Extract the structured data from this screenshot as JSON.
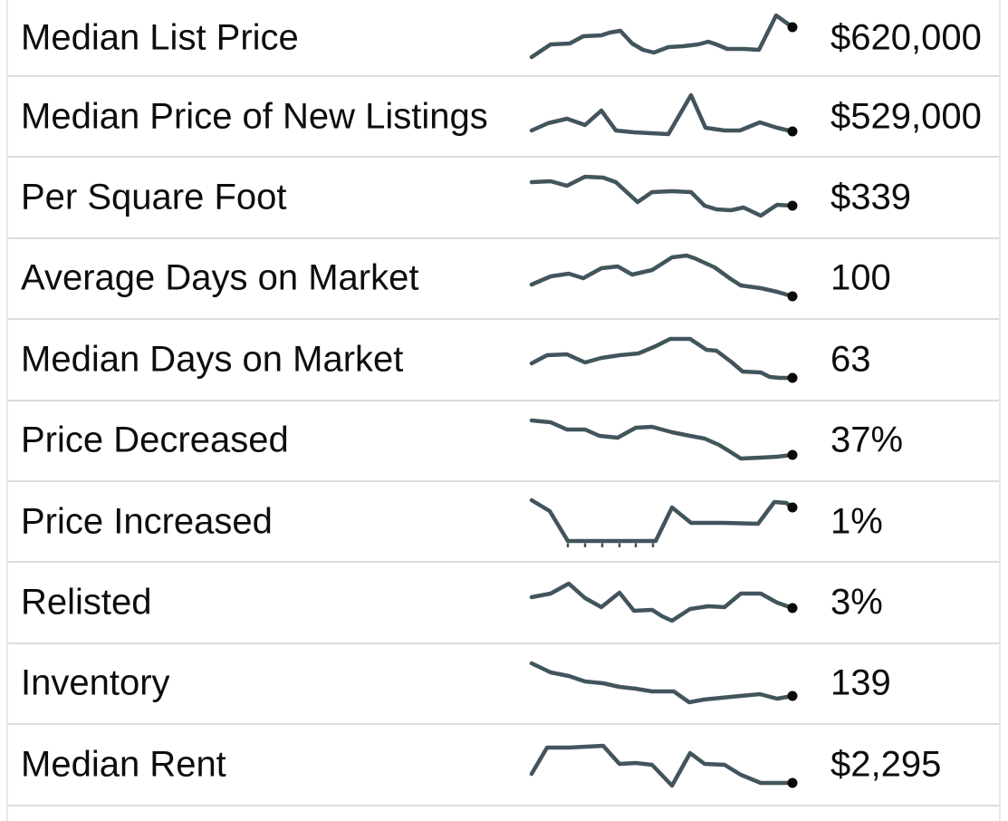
{
  "colors": {
    "background": "#ffffff",
    "text": "#0d0d0d",
    "sparkline": "#42555d",
    "endpoint_dot": "#0a0a0a",
    "row_divider": "#dcdcdc",
    "side_border": "#e9e9e9"
  },
  "chart_data": {
    "type": "table",
    "title": "Real estate market trends: metric rows, trend sparklines and latest values",
    "legend_position": "none",
    "grid": false,
    "rows": [
      {
        "label": "Median List Price",
        "value": "$620,000",
        "sparkline": [
          [
            0,
            53
          ],
          [
            21,
            39
          ],
          [
            42,
            38
          ],
          [
            57,
            30
          ],
          [
            77,
            29
          ],
          [
            86,
            26
          ],
          [
            98,
            24
          ],
          [
            111,
            38
          ],
          [
            123,
            45
          ],
          [
            135,
            48
          ],
          [
            151,
            42
          ],
          [
            167,
            41
          ],
          [
            184,
            39
          ],
          [
            195,
            36
          ],
          [
            204,
            39
          ],
          [
            216,
            44
          ],
          [
            234,
            44
          ],
          [
            251,
            45
          ],
          [
            270,
            7
          ],
          [
            288,
            20
          ]
        ]
      },
      {
        "label": "Median Price of New Listings",
        "value": "$529,000",
        "sparkline": [
          [
            0,
            47
          ],
          [
            18,
            39
          ],
          [
            39,
            34
          ],
          [
            59,
            41
          ],
          [
            77,
            25
          ],
          [
            93,
            47
          ],
          [
            113,
            49
          ],
          [
            132,
            50
          ],
          [
            151,
            51
          ],
          [
            176,
            8
          ],
          [
            192,
            44
          ],
          [
            213,
            47
          ],
          [
            230,
            47
          ],
          [
            252,
            38
          ],
          [
            271,
            44
          ],
          [
            288,
            48
          ]
        ]
      },
      {
        "label": "Per Square Foot",
        "value": "$339",
        "sparkline": [
          [
            0,
            15
          ],
          [
            21,
            14
          ],
          [
            39,
            19
          ],
          [
            59,
            9
          ],
          [
            79,
            10
          ],
          [
            93,
            15
          ],
          [
            117,
            37
          ],
          [
            133,
            26
          ],
          [
            155,
            25
          ],
          [
            176,
            26
          ],
          [
            191,
            41
          ],
          [
            204,
            45
          ],
          [
            220,
            46
          ],
          [
            234,
            43
          ],
          [
            253,
            52
          ],
          [
            271,
            40
          ],
          [
            288,
            41
          ]
        ]
      },
      {
        "label": "Average Days on Market",
        "value": "100",
        "sparkline": [
          [
            0,
            39
          ],
          [
            21,
            30
          ],
          [
            41,
            27
          ],
          [
            57,
            32
          ],
          [
            77,
            21
          ],
          [
            95,
            19
          ],
          [
            111,
            28
          ],
          [
            133,
            23
          ],
          [
            155,
            9
          ],
          [
            171,
            7
          ],
          [
            180,
            10
          ],
          [
            202,
            20
          ],
          [
            220,
            33
          ],
          [
            231,
            40
          ],
          [
            253,
            43
          ],
          [
            271,
            47
          ],
          [
            288,
            52
          ]
        ]
      },
      {
        "label": "Median Days on Market",
        "value": "63",
        "sparkline": [
          [
            0,
            36
          ],
          [
            17,
            27
          ],
          [
            39,
            26
          ],
          [
            59,
            35
          ],
          [
            77,
            30
          ],
          [
            97,
            27
          ],
          [
            118,
            25
          ],
          [
            137,
            17
          ],
          [
            153,
            9
          ],
          [
            175,
            9
          ],
          [
            193,
            21
          ],
          [
            204,
            22
          ],
          [
            220,
            34
          ],
          [
            233,
            45
          ],
          [
            253,
            46
          ],
          [
            263,
            51
          ],
          [
            274,
            52
          ],
          [
            288,
            52
          ]
        ]
      },
      {
        "label": "Price Decreased",
        "value": "37%",
        "sparkline": [
          [
            0,
            10
          ],
          [
            21,
            12
          ],
          [
            39,
            20
          ],
          [
            59,
            20
          ],
          [
            75,
            27
          ],
          [
            95,
            29
          ],
          [
            115,
            18
          ],
          [
            133,
            17
          ],
          [
            155,
            23
          ],
          [
            175,
            27
          ],
          [
            191,
            30
          ],
          [
            207,
            37
          ],
          [
            220,
            45
          ],
          [
            231,
            52
          ],
          [
            253,
            51
          ],
          [
            271,
            50
          ],
          [
            288,
            48
          ]
        ]
      },
      {
        "label": "Price Increased",
        "value": "1%",
        "sparkline": [
          [
            0,
            8
          ],
          [
            20,
            20
          ],
          [
            40,
            53
          ],
          [
            137,
            53
          ],
          [
            155,
            16
          ],
          [
            176,
            33
          ],
          [
            212,
            33
          ],
          [
            250,
            34
          ],
          [
            268,
            10
          ],
          [
            281,
            11
          ],
          [
            288,
            16
          ]
        ],
        "zero_ticks_x": [
          40,
          59,
          78,
          97,
          115,
          134
        ]
      },
      {
        "label": "Relisted",
        "value": "3%",
        "sparkline": [
          [
            0,
            26
          ],
          [
            21,
            22
          ],
          [
            41,
            11
          ],
          [
            59,
            27
          ],
          [
            77,
            37
          ],
          [
            97,
            21
          ],
          [
            113,
            41
          ],
          [
            133,
            40
          ],
          [
            144,
            47
          ],
          [
            155,
            52
          ],
          [
            175,
            39
          ],
          [
            195,
            36
          ],
          [
            213,
            37
          ],
          [
            231,
            22
          ],
          [
            253,
            22
          ],
          [
            271,
            32
          ],
          [
            288,
            38
          ]
        ]
      },
      {
        "label": "Inventory",
        "value": "139",
        "sparkline": [
          [
            0,
            10
          ],
          [
            21,
            20
          ],
          [
            41,
            24
          ],
          [
            59,
            30
          ],
          [
            79,
            32
          ],
          [
            97,
            36
          ],
          [
            115,
            38
          ],
          [
            133,
            41
          ],
          [
            157,
            41
          ],
          [
            174,
            53
          ],
          [
            190,
            50
          ],
          [
            220,
            47
          ],
          [
            252,
            44
          ],
          [
            271,
            49
          ],
          [
            288,
            46
          ]
        ]
      },
      {
        "label": "Median Rent",
        "value": "$2,295",
        "sparkline": [
          [
            0,
            42
          ],
          [
            17,
            13
          ],
          [
            41,
            13
          ],
          [
            79,
            11
          ],
          [
            97,
            31
          ],
          [
            115,
            30
          ],
          [
            133,
            32
          ],
          [
            155,
            55
          ],
          [
            175,
            19
          ],
          [
            191,
            31
          ],
          [
            213,
            32
          ],
          [
            231,
            43
          ],
          [
            253,
            52
          ],
          [
            271,
            52
          ],
          [
            288,
            52
          ]
        ]
      }
    ]
  }
}
